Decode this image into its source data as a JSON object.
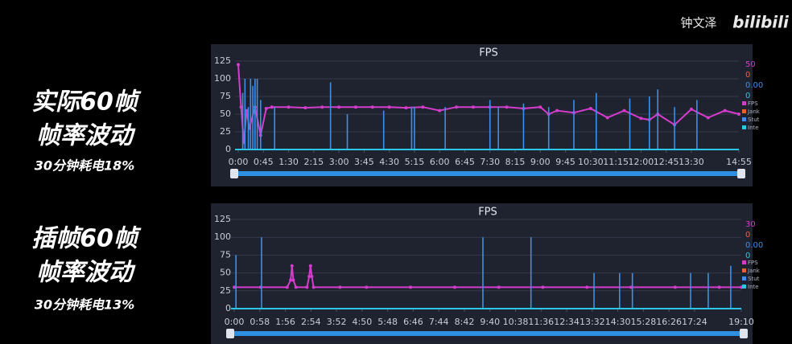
{
  "side_labels": [
    {
      "title": "实际60帧",
      "subtitle": "帧率波动",
      "note": "30分钟耗电18%"
    },
    {
      "title": "插帧60帧",
      "subtitle": "帧率波动",
      "note": "30分钟耗电13%"
    }
  ],
  "watermark": {
    "author": "钟文泽",
    "site": "bilibili"
  },
  "chart_data": [
    {
      "type": "line",
      "title": "FPS",
      "x": [
        0,
        5,
        10,
        15,
        20,
        30,
        40,
        50,
        60,
        90,
        120,
        150,
        180,
        210,
        240,
        270,
        300,
        330,
        360,
        390,
        420,
        450,
        480,
        510,
        540,
        555,
        570,
        600,
        630,
        660,
        690,
        720,
        735,
        750,
        780,
        810,
        840,
        870,
        895
      ],
      "series": [
        {
          "name": "FPS",
          "color": "#d43ccc",
          "values": [
            120,
            60,
            10,
            55,
            30,
            60,
            20,
            58,
            60,
            60,
            59,
            60,
            60,
            60,
            60,
            60,
            59,
            60,
            55,
            60,
            60,
            60,
            60,
            58,
            60,
            50,
            55,
            52,
            58,
            45,
            55,
            44,
            42,
            50,
            35,
            57,
            45,
            55,
            50
          ]
        },
        {
          "name": "Jank",
          "color": "#e8632c"
        },
        {
          "name": "Stut",
          "color": "#3d8fe8",
          "x": [
            8,
            12,
            18,
            22,
            26,
            30,
            34,
            40,
            65,
            165,
            195,
            260,
            310,
            315,
            370,
            450,
            465,
            510,
            555,
            600,
            640,
            700,
            735,
            750,
            780,
            820
          ],
          "values": [
            80,
            100,
            60,
            100,
            90,
            100,
            100,
            70,
            60,
            95,
            50,
            55,
            60,
            60,
            60,
            70,
            60,
            65,
            60,
            70,
            80,
            72,
            75,
            85,
            60,
            70
          ]
        },
        {
          "name": "Inte",
          "color": "#2cc6e8"
        }
      ],
      "readouts": [
        50,
        0,
        {
          "value": 0,
          "label": "0.00"
        },
        0
      ],
      "xlim": [
        0,
        895
      ],
      "xticks": [
        {
          "value": 0,
          "label": "0:00"
        },
        {
          "value": 45,
          "label": "0:45"
        },
        {
          "value": 90,
          "label": "1:30"
        },
        {
          "value": 135,
          "label": "2:15"
        },
        {
          "value": 180,
          "label": "3:00"
        },
        {
          "value": 225,
          "label": "3:45"
        },
        {
          "value": 270,
          "label": "4:30"
        },
        {
          "value": 315,
          "label": "5:15"
        },
        {
          "value": 360,
          "label": "6:00"
        },
        {
          "value": 405,
          "label": "6:45"
        },
        {
          "value": 450,
          "label": "7:30"
        },
        {
          "value": 495,
          "label": "8:15"
        },
        {
          "value": 540,
          "label": "9:00"
        },
        {
          "value": 585,
          "label": "9:45"
        },
        {
          "value": 630,
          "label": "10:30"
        },
        {
          "value": 675,
          "label": "11:15"
        },
        {
          "value": 720,
          "label": "12:00"
        },
        {
          "value": 765,
          "label": "12:45"
        },
        {
          "value": 810,
          "label": "13:30"
        },
        {
          "value": 895,
          "label": "14:55"
        }
      ],
      "ylim": [
        0,
        125
      ],
      "yticks": [
        0,
        25,
        50,
        75,
        100,
        125
      ],
      "grid": true
    },
    {
      "type": "line",
      "title": "FPS",
      "x": [
        0,
        60,
        120,
        128,
        131,
        134,
        140,
        165,
        170,
        173,
        176,
        180,
        240,
        300,
        400,
        500,
        600,
        700,
        800,
        900,
        1000,
        1100,
        1150
      ],
      "series": [
        {
          "name": "FPS",
          "color": "#d43ccc",
          "values": [
            30,
            30,
            30,
            40,
            60,
            40,
            30,
            30,
            45,
            60,
            45,
            30,
            30,
            30,
            30,
            30,
            30,
            30,
            30,
            30,
            30,
            30,
            30
          ]
        },
        {
          "name": "Jank",
          "color": "#e8632c"
        },
        {
          "name": "Stut",
          "color": "#3d8fe8",
          "x": [
            4,
            62,
            564,
            673,
            816,
            874,
            903,
            1035,
            1075,
            1126
          ],
          "values": [
            75,
            100,
            100,
            100,
            50,
            50,
            50,
            50,
            50,
            60
          ]
        },
        {
          "name": "Inte",
          "color": "#2cc6e8"
        }
      ],
      "readouts": [
        30,
        0,
        {
          "value": 0,
          "label": "0.00"
        },
        0
      ],
      "xlim": [
        0,
        1150
      ],
      "xticks": [
        {
          "value": 0,
          "label": "0:00"
        },
        {
          "value": 58,
          "label": "0:58"
        },
        {
          "value": 116,
          "label": "1:56"
        },
        {
          "value": 174,
          "label": "2:54"
        },
        {
          "value": 232,
          "label": "3:52"
        },
        {
          "value": 290,
          "label": "4:50"
        },
        {
          "value": 348,
          "label": "5:48"
        },
        {
          "value": 406,
          "label": "6:46"
        },
        {
          "value": 464,
          "label": "7:44"
        },
        {
          "value": 522,
          "label": "8:42"
        },
        {
          "value": 580,
          "label": "9:40"
        },
        {
          "value": 638,
          "label": "10:38"
        },
        {
          "value": 696,
          "label": "11:36"
        },
        {
          "value": 754,
          "label": "12:34"
        },
        {
          "value": 812,
          "label": "13:32"
        },
        {
          "value": 870,
          "label": "14:30"
        },
        {
          "value": 928,
          "label": "15:28"
        },
        {
          "value": 986,
          "label": "16:26"
        },
        {
          "value": 1044,
          "label": "17:24"
        },
        {
          "value": 1150,
          "label": "19:10"
        }
      ],
      "ylim": [
        0,
        125
      ],
      "yticks": [
        0,
        25,
        50,
        75,
        100,
        125
      ],
      "grid": true
    }
  ]
}
